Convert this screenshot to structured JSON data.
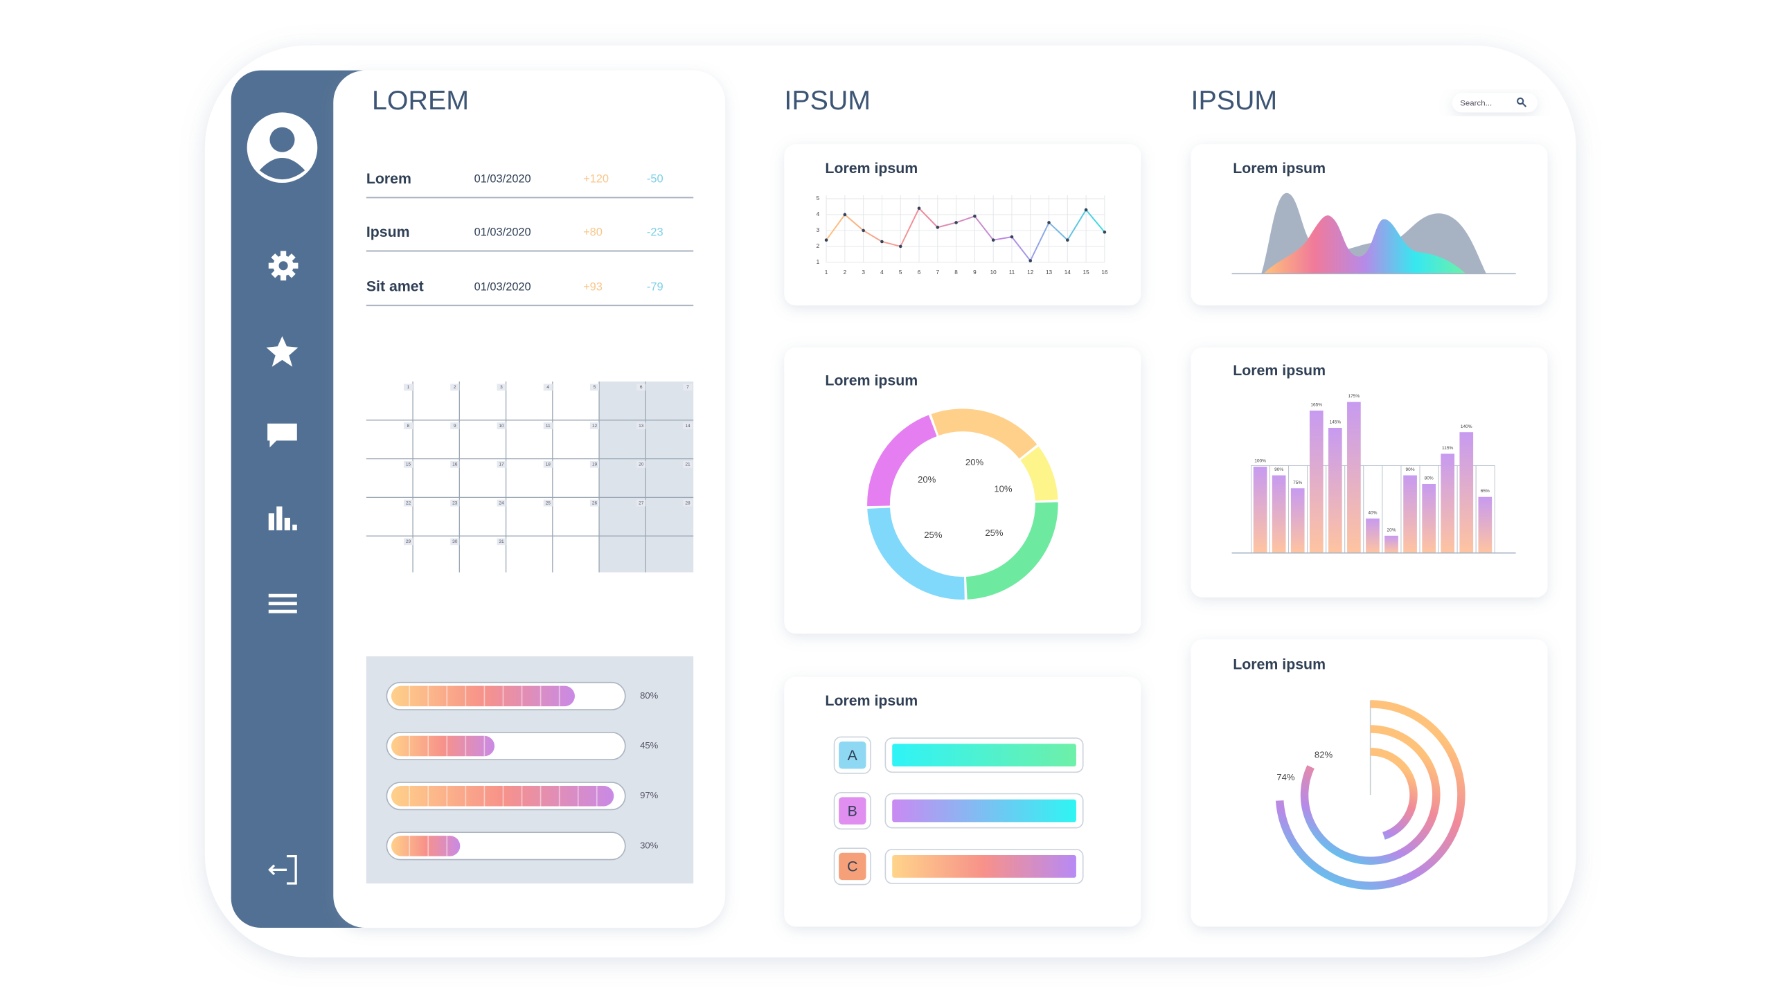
{
  "headings": [
    "LOREM",
    "IPSUM",
    "IPSUM"
  ],
  "search_placeholder": "Search...",
  "table": {
    "rows": [
      [
        "Lorem",
        "01/03/2020",
        "+120",
        "-50"
      ],
      [
        "Ipsum",
        "01/03/2020",
        "+80",
        "-23"
      ],
      [
        "Sit amet",
        "01/03/2020",
        "+93",
        "-79"
      ]
    ]
  },
  "calendar": {
    "days": [
      1,
      2,
      3,
      4,
      5,
      6,
      7,
      8,
      9,
      10,
      11,
      12,
      13,
      14,
      15,
      16,
      17,
      18,
      19,
      20,
      21,
      22,
      23,
      24,
      25,
      26,
      27,
      28,
      29,
      30,
      31
    ]
  },
  "chart_data": [
    {
      "type": "progress",
      "values": [
        80,
        45,
        97,
        30
      ],
      "value_labels": [
        "80%",
        "45%",
        "97%",
        "30%"
      ],
      "xlim": [
        0,
        100
      ],
      "colors": [
        "#ffd08a",
        "#f7928a",
        "#c98ae6"
      ]
    },
    {
      "type": "line",
      "title": "Lorem ipsum",
      "x": [
        1,
        2,
        3,
        4,
        5,
        6,
        7,
        8,
        9,
        10,
        11,
        12,
        13,
        14,
        15,
        16
      ],
      "values": [
        2.4,
        4.0,
        3.0,
        2.3,
        2.0,
        4.4,
        3.2,
        3.5,
        3.9,
        2.4,
        2.6,
        1.1,
        3.5,
        2.4,
        4.3,
        2.9
      ],
      "xlim": [
        1,
        16
      ],
      "ylim": [
        1,
        5
      ],
      "xticks": [
        1,
        2,
        3,
        4,
        5,
        6,
        7,
        8,
        9,
        10,
        11,
        12,
        13,
        14,
        15,
        16
      ],
      "yticks": [
        1,
        2,
        3,
        4,
        5
      ],
      "grid": true,
      "colors": [
        "#ffc27a",
        "#f08a9a",
        "#b68ae8",
        "#36e0e0"
      ]
    },
    {
      "type": "donut",
      "title": "Lorem ipsum",
      "values": [
        20,
        10,
        25,
        25,
        20
      ],
      "value_labels": [
        "20%",
        "10%",
        "25%",
        "25%",
        "20%"
      ],
      "colors": [
        "#ffd08a",
        "#fdf48a",
        "#6ee9a0",
        "#80d8fb",
        "#e57ef0"
      ]
    },
    {
      "type": "category-bars",
      "title": "Lorem ipsum",
      "categories": [
        "A",
        "B",
        "C"
      ],
      "colors": [
        [
          "#2ff3f7",
          "#6ef0a8"
        ],
        [
          "#c98af2",
          "#2ef5f3"
        ],
        [
          "#ffd48a",
          "#f7918a",
          "#b78af5"
        ]
      ],
      "box_colors": [
        "#8fd8f3",
        "#e08ef0",
        "#f6a07a"
      ]
    },
    {
      "type": "area",
      "title": "Lorem ipsum"
    },
    {
      "type": "bar",
      "title": "Lorem ipsum",
      "values": [
        100,
        90,
        75,
        165,
        145,
        175,
        40,
        20,
        90,
        80,
        115,
        140,
        65
      ],
      "value_labels": [
        "100%",
        "90%",
        "75%",
        "165%",
        "145%",
        "175%",
        "40%",
        "20%",
        "90%",
        "80%",
        "115%",
        "140%",
        "65%"
      ],
      "ylim": [
        0,
        200
      ],
      "colors": [
        "#c79af0",
        "#ffc4a0"
      ]
    },
    {
      "type": "radial",
      "title": "Lorem ipsum",
      "values": [
        74,
        82,
        45
      ],
      "value_labels": [
        "74%",
        "82%",
        null
      ],
      "colors": [
        "#ffc27a",
        "#f08a9a",
        "#b68ae8",
        "#36e0f0"
      ]
    }
  ]
}
